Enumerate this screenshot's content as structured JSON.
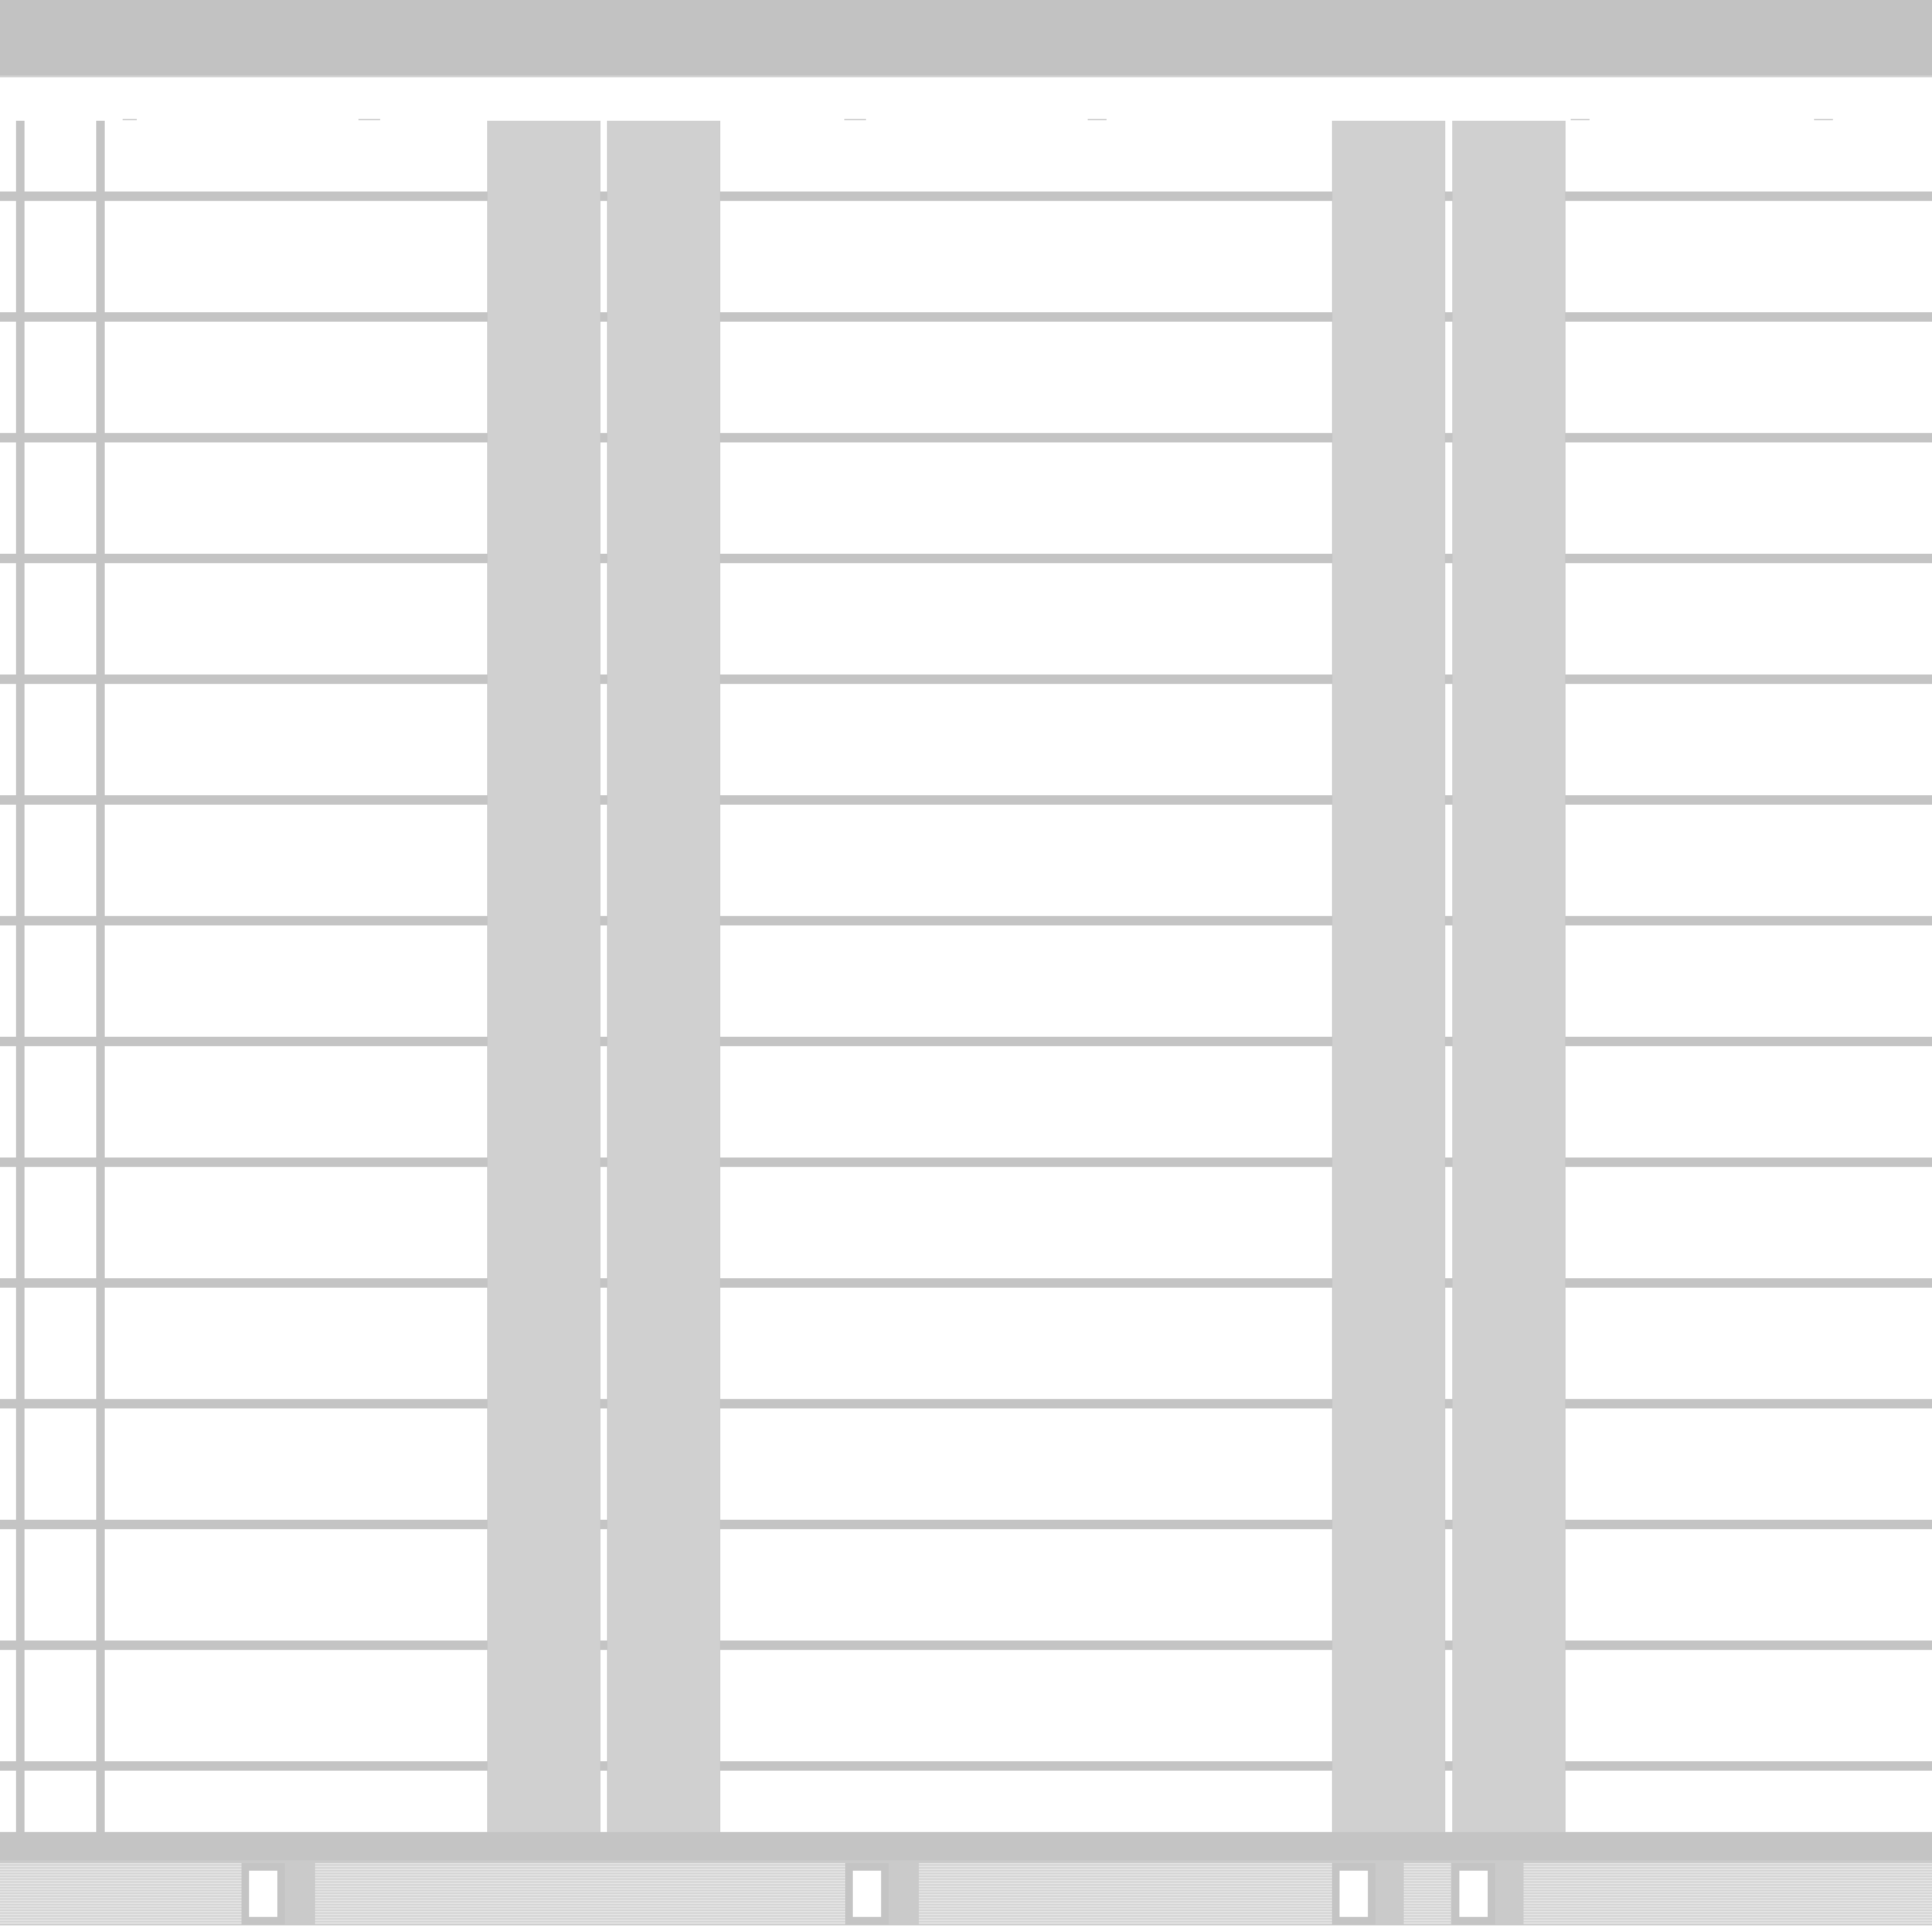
{
  "window": {
    "toolbar_label": "",
    "status_text": ""
  },
  "grid": {
    "row_count": 14,
    "column_blocks": [
      {
        "label": ""
      },
      {
        "label": ""
      },
      {
        "label": ""
      },
      {
        "label": ""
      }
    ]
  },
  "colors": {
    "toolbar": "#c2c2c2",
    "grid_line": "#c4c4c4",
    "column_block": "#d0d0d0",
    "background": "#ffffff"
  }
}
